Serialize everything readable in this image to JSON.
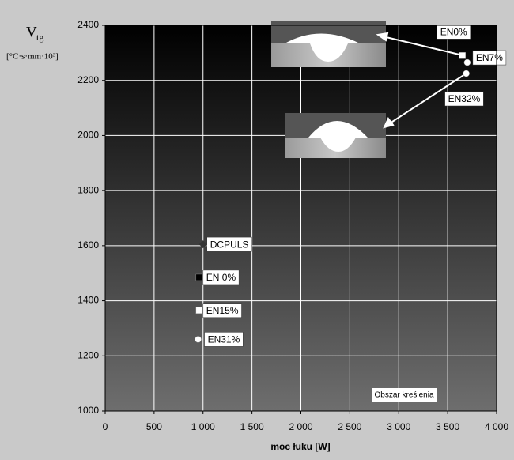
{
  "chart_data": {
    "type": "scatter",
    "ylabel": "V",
    "ylabel_subscript": "tg",
    "ylabel_unit": "[°C·s·mm·10³]",
    "xlabel": "moc łuku [W]",
    "annotation": "Obszar kreślenia",
    "xlim": [
      0,
      4000
    ],
    "xticks": [
      0,
      500,
      {
        "value": 1000,
        "label": "1 000"
      },
      {
        "value": 1500,
        "label": "1 500"
      },
      {
        "value": 2000,
        "label": "2 000"
      },
      {
        "value": 2500,
        "label": "2 500"
      },
      {
        "value": 3000,
        "label": "3 000"
      },
      {
        "value": 3500,
        "label": "3 500"
      },
      {
        "value": 4000,
        "label": "4 000"
      }
    ],
    "ylim": [
      1000,
      2400
    ],
    "yticks": [
      1000,
      1200,
      1400,
      1600,
      1800,
      2000,
      2200,
      2400
    ],
    "grid": true,
    "series": [
      {
        "name": "EN0%",
        "marker": "square",
        "color": "#ffffff",
        "x": [
          3650
        ],
        "values": [
          2290
        ]
      },
      {
        "name": "EN7%",
        "marker": "circle",
        "color": "#ffffff",
        "x": [
          3700
        ],
        "values": [
          2265
        ]
      },
      {
        "name": "EN32%",
        "marker": "circle",
        "color": "#ffffff",
        "x": [
          3690
        ],
        "values": [
          2225
        ]
      },
      {
        "name": "DCPULS",
        "marker": "diamond",
        "color": "#333333",
        "x": [
          1000
        ],
        "values": [
          1605
        ]
      },
      {
        "name": "EN 0%",
        "marker": "square",
        "color": "#000000",
        "x": [
          960
        ],
        "values": [
          1485
        ]
      },
      {
        "name": "EN15%",
        "marker": "square",
        "color": "#ffffff",
        "x": [
          960
        ],
        "values": [
          1365
        ]
      },
      {
        "name": "EN31%",
        "marker": "circle",
        "color": "#ffffff",
        "x": [
          950
        ],
        "values": [
          1260
        ]
      }
    ]
  }
}
